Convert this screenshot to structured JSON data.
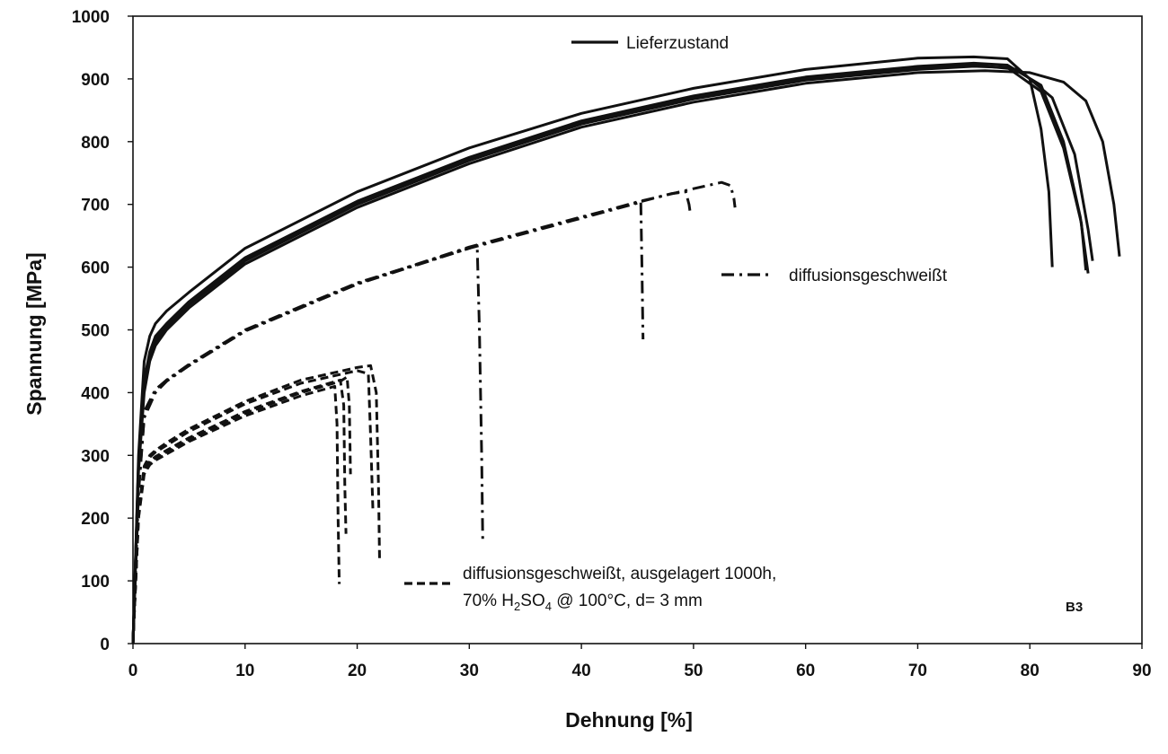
{
  "chart_data": {
    "type": "line",
    "xlabel": "Dehnung [%]",
    "ylabel": "Spannung [MPa]",
    "xlim": [
      0,
      90
    ],
    "ylim": [
      0,
      1000
    ],
    "x_ticks": [
      0,
      10,
      20,
      30,
      40,
      50,
      60,
      70,
      80,
      90
    ],
    "y_ticks": [
      0,
      100,
      200,
      300,
      400,
      500,
      600,
      700,
      800,
      900,
      1000
    ],
    "grid": false,
    "annotation": "B3",
    "legend": [
      {
        "label": "Lieferzustand",
        "style": "solid"
      },
      {
        "label": "diffusionsgeschweißt",
        "style": "dashdot"
      },
      {
        "label": "diffusionsgeschweißt, ausgelagert 1000h,",
        "label_line2": "70% H2SO4 @ 100°C, d= 3 mm",
        "style": "dashed"
      }
    ],
    "series": [
      {
        "group": "Lieferzustand",
        "style": "solid",
        "x": [
          0,
          0.5,
          1.0,
          1.5,
          2,
          3,
          5,
          10,
          20,
          30,
          40,
          50,
          60,
          70,
          75,
          78,
          80,
          81,
          81.7,
          82.0
        ],
        "y": [
          0,
          300,
          450,
          490,
          510,
          530,
          560,
          630,
          720,
          790,
          845,
          885,
          915,
          933,
          935,
          932,
          900,
          820,
          720,
          600
        ]
      },
      {
        "group": "Lieferzustand",
        "style": "solid",
        "x": [
          0,
          0.5,
          1.0,
          1.5,
          2,
          3,
          5,
          10,
          20,
          30,
          40,
          50,
          60,
          70,
          75,
          78,
          81,
          83,
          84.5,
          85.2
        ],
        "y": [
          0,
          290,
          420,
          465,
          490,
          510,
          545,
          615,
          705,
          775,
          833,
          873,
          903,
          920,
          925,
          922,
          890,
          800,
          680,
          590
        ]
      },
      {
        "group": "Lieferzustand",
        "style": "solid",
        "x": [
          0,
          0.5,
          1.0,
          1.5,
          2,
          3,
          5,
          10,
          20,
          30,
          40,
          50,
          60,
          70,
          75,
          78,
          81,
          83,
          84.6,
          85.0
        ],
        "y": [
          0,
          280,
          410,
          455,
          480,
          505,
          540,
          610,
          700,
          770,
          828,
          868,
          898,
          915,
          920,
          918,
          880,
          790,
          670,
          595
        ]
      },
      {
        "group": "Lieferzustand",
        "style": "solid",
        "x": [
          0,
          0.5,
          1.0,
          1.5,
          2,
          3,
          5,
          10,
          20,
          30,
          40,
          50,
          60,
          70,
          75,
          79,
          82,
          84,
          85.2,
          85.6
        ],
        "y": [
          0,
          285,
          415,
          460,
          485,
          508,
          542,
          612,
          702,
          772,
          830,
          870,
          900,
          917,
          922,
          915,
          870,
          780,
          660,
          610
        ]
      },
      {
        "group": "Lieferzustand",
        "style": "solid",
        "x": [
          0,
          0.5,
          1.0,
          1.5,
          2,
          3,
          5,
          10,
          20,
          30,
          40,
          50,
          60,
          70,
          76,
          80,
          83,
          85,
          86.5,
          87.5,
          88.0
        ],
        "y": [
          0,
          275,
          400,
          450,
          475,
          500,
          535,
          605,
          695,
          765,
          823,
          863,
          893,
          910,
          913,
          910,
          895,
          865,
          800,
          700,
          617
        ]
      },
      {
        "group": "diffusionsgeschweißt",
        "style": "dashdot",
        "x": [
          0,
          0.5,
          1,
          2,
          3,
          5,
          10,
          20,
          30,
          30.7,
          30.9,
          31.1,
          31.2
        ],
        "y": [
          0,
          250,
          370,
          405,
          420,
          445,
          500,
          575,
          630,
          635,
          500,
          300,
          165
        ]
      },
      {
        "group": "diffusionsgeschweißt",
        "style": "dashdot",
        "x": [
          0,
          0.5,
          1,
          2,
          3,
          5,
          10,
          20,
          30,
          40,
          45,
          45.3,
          45.4,
          45.5
        ],
        "y": [
          0,
          240,
          360,
          400,
          418,
          443,
          498,
          573,
          630,
          678,
          702,
          705,
          600,
          485
        ]
      },
      {
        "group": "diffusionsgeschweißt",
        "style": "dashdot",
        "x": [
          0,
          0.5,
          1,
          2,
          3,
          5,
          10,
          20,
          30,
          40,
          45,
          48,
          49.3,
          49.6,
          49.7
        ],
        "y": [
          0,
          245,
          365,
          402,
          420,
          444,
          499,
          574,
          632,
          680,
          703,
          717,
          720,
          700,
          688
        ]
      },
      {
        "group": "diffusionsgeschweißt",
        "style": "dashdot",
        "x": [
          0,
          0.5,
          1,
          2,
          3,
          5,
          10,
          20,
          30,
          40,
          45,
          50,
          52.5,
          53.3,
          53.6,
          53.7
        ],
        "y": [
          0,
          242,
          362,
          401,
          419,
          443,
          498,
          573,
          631,
          679,
          704,
          725,
          735,
          730,
          710,
          695
        ]
      },
      {
        "group": "diffusionsgeschweißt, ausgelagert 1000h, 70% H2SO4 @ 100°C, d= 3 mm",
        "style": "dashed",
        "x": [
          0,
          0.5,
          1,
          1.5,
          2,
          3,
          5,
          10,
          15,
          18.0,
          18.2,
          18.3,
          18.4
        ],
        "y": [
          0,
          200,
          270,
          285,
          292,
          302,
          322,
          363,
          395,
          410,
          350,
          200,
          95
        ]
      },
      {
        "group": "diffusionsgeschweißt, ausgelagert 1000h, 70% H2SO4 @ 100°C, d= 3 mm",
        "style": "dashed",
        "x": [
          0,
          0.5,
          1,
          1.5,
          2,
          3,
          5,
          10,
          15,
          18.5,
          18.8,
          18.9,
          19.0
        ],
        "y": [
          0,
          205,
          275,
          290,
          298,
          308,
          328,
          370,
          402,
          420,
          380,
          250,
          175
        ]
      },
      {
        "group": "diffusionsgeschweißt, ausgelagert 1000h, 70% H2SO4 @ 100°C, d= 3 mm",
        "style": "dashed",
        "x": [
          0,
          0.5,
          1,
          1.5,
          2,
          3,
          5,
          10,
          15,
          18.5,
          19.1,
          19.3,
          19.4
        ],
        "y": [
          0,
          202,
          272,
          288,
          295,
          305,
          325,
          367,
          400,
          418,
          425,
          380,
          270
        ]
      },
      {
        "group": "diffusionsgeschweißt, ausgelagert 1000h, 70% H2SO4 @ 100°C, d= 3 mm",
        "style": "dashed",
        "x": [
          0,
          0.5,
          1,
          1.5,
          2,
          3,
          5,
          10,
          15,
          20,
          21.0,
          21.2,
          21.4
        ],
        "y": [
          0,
          210,
          280,
          297,
          305,
          316,
          338,
          382,
          415,
          435,
          430,
          330,
          215
        ]
      },
      {
        "group": "diffusionsgeschweißt, ausgelagert 1000h, 70% H2SO4 @ 100°C, d= 3 mm",
        "style": "dashed",
        "x": [
          0,
          0.5,
          1,
          1.5,
          2,
          3,
          5,
          10,
          15,
          20,
          21.2,
          21.7,
          21.9,
          22.0
        ],
        "y": [
          0,
          212,
          283,
          300,
          308,
          320,
          342,
          386,
          420,
          440,
          443,
          400,
          250,
          130
        ]
      }
    ]
  }
}
